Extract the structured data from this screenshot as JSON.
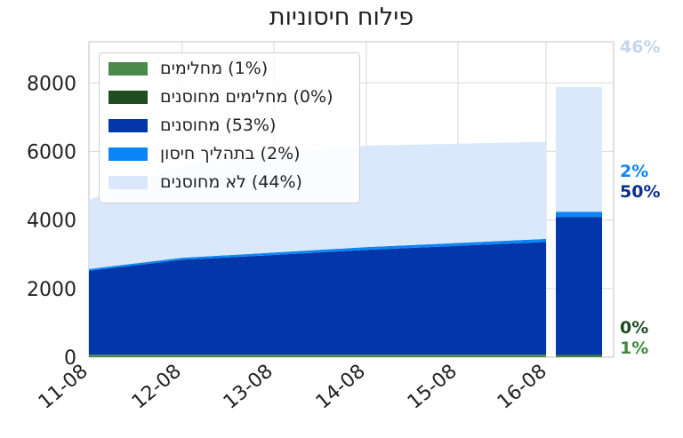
{
  "chart_data": {
    "type": "area",
    "title": "פילוח חיסוניות",
    "xlabel": "",
    "ylabel": "",
    "categories": [
      "11-08",
      "12-08",
      "13-08",
      "14-08",
      "15-08",
      "16-08"
    ],
    "y_ticks": [
      "0",
      "2000",
      "4000",
      "6000",
      "8000"
    ],
    "ylim": [
      0,
      9200
    ],
    "grid": true,
    "legend_position": "top-left",
    "series": [
      {
        "name": "(1%) מחלימים",
        "color": "#4a8a4a",
        "values": [
          60,
          60,
          60,
          60,
          60,
          60
        ]
      },
      {
        "name": "(0%) מחלימים מחוסנים",
        "color": "#1f4d22",
        "values": [
          10,
          10,
          10,
          10,
          10,
          10
        ]
      },
      {
        "name": "(53%) מחוסנים",
        "color": "#0336a8",
        "values": [
          2450,
          2770,
          2910,
          3060,
          3290,
          4020
        ]
      },
      {
        "name": "(2%) בתהליך חיסון",
        "color": "#0b85f5",
        "values": [
          50,
          60,
          70,
          80,
          90,
          150
        ]
      },
      {
        "name": "(44%) לא מחוסנים",
        "color": "#d9e9fb",
        "values": [
          2020,
          2710,
          2900,
          2960,
          2830,
          3640
        ]
      }
    ],
    "last_bar_labels": [
      {
        "text": "46%",
        "color": "#c3d6ee"
      },
      {
        "text": "2%",
        "color": "#0b85f5"
      },
      {
        "text": "50%",
        "color": "#0a2f8a"
      },
      {
        "text": "0%",
        "color": "#1f4d22"
      },
      {
        "text": "1%",
        "color": "#3d8a3d"
      }
    ]
  }
}
